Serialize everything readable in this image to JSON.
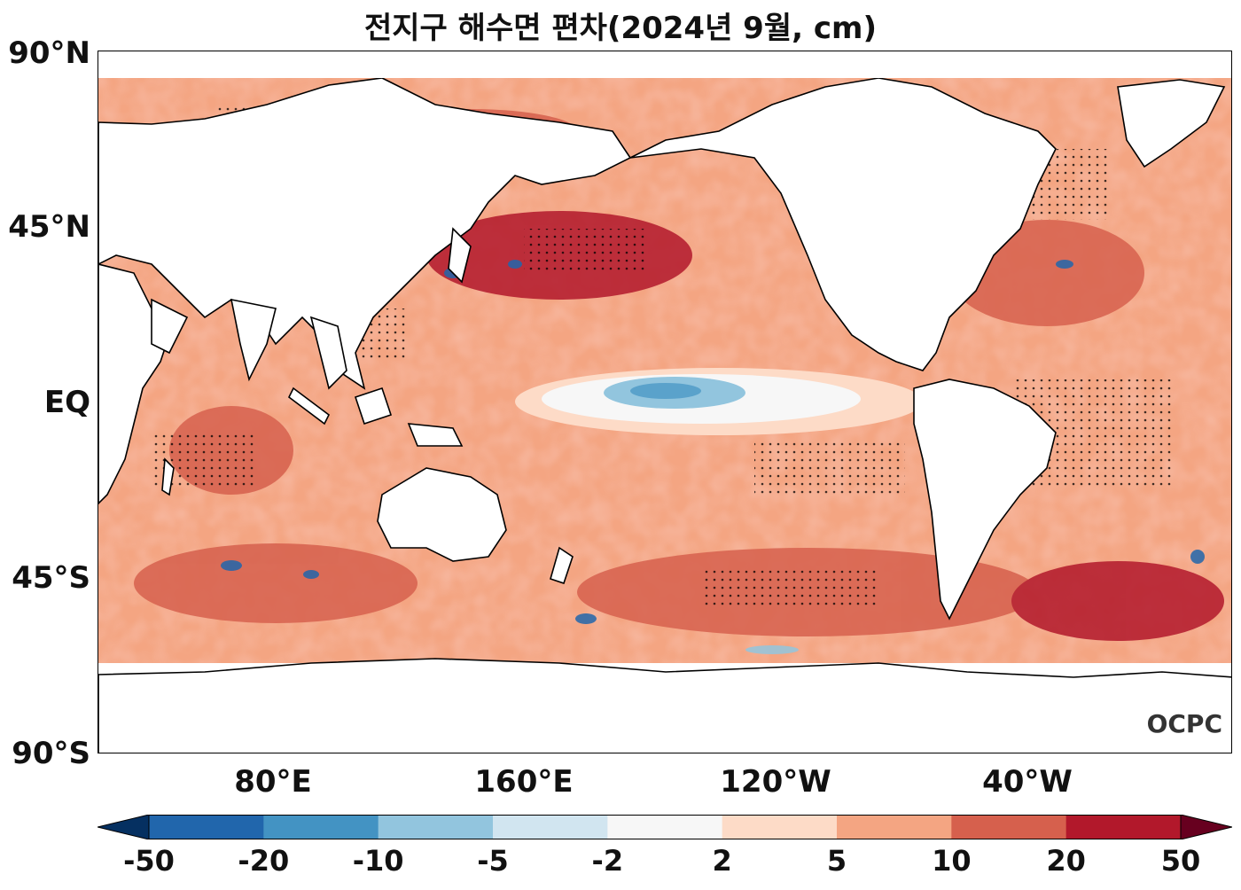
{
  "title": "전지구 해수면 편차(2024년 9월, cm)",
  "lat_ticks": [
    "90°N",
    "45°N",
    "EQ",
    "45°S",
    "90°S"
  ],
  "lon_ticks": [
    "80°E",
    "160°E",
    "120°W",
    "40°W"
  ],
  "colorbar": {
    "labels": [
      "-50",
      "-20",
      "-10",
      "-5",
      "-2",
      "2",
      "5",
      "10",
      "20",
      "50"
    ],
    "colors": [
      "#053061",
      "#2166ac",
      "#4393c3",
      "#92c5de",
      "#d1e5f0",
      "#f7f7f7",
      "#fddbc7",
      "#f4a582",
      "#d6604d",
      "#b2182b",
      "#67001f"
    ]
  },
  "logo": "OCPC"
}
